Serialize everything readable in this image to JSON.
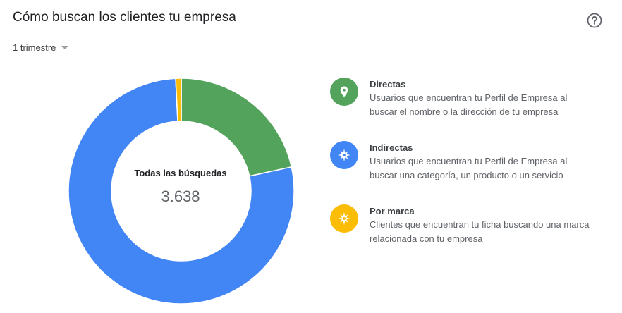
{
  "header": {
    "title": "Cómo buscan los clientes tu empresa",
    "help_icon": "help-circle-icon"
  },
  "period_selector": {
    "selected": "1 trimestre"
  },
  "chart_data": {
    "type": "pie",
    "donut": true,
    "center_label": "Todas las búsquedas",
    "center_value": "3.638",
    "total": 3638,
    "categories": [
      "Directas",
      "Indirectas",
      "Por marca"
    ],
    "values": [
      785,
      2824,
      29
    ],
    "colors": [
      "#53a35d",
      "#4285f4",
      "#fbbc04"
    ]
  },
  "legend": [
    {
      "title": "Directas",
      "description": "Usuarios que encuentran tu Perfil de Empresa al buscar el nombre o la dirección de tu empresa",
      "color": "#53a35d",
      "icon": "location-pin-icon"
    },
    {
      "title": "Indirectas",
      "description": "Usuarios que encuentran tu Perfil de Empresa al buscar una categoría, un producto o un servicio",
      "color": "#4285f4",
      "icon": "compass-icon"
    },
    {
      "title": "Por marca",
      "description": "Clientes que encuentran tu ficha buscando una marca relacionada con tu empresa",
      "color": "#fbbc04",
      "icon": "compass-icon"
    }
  ]
}
